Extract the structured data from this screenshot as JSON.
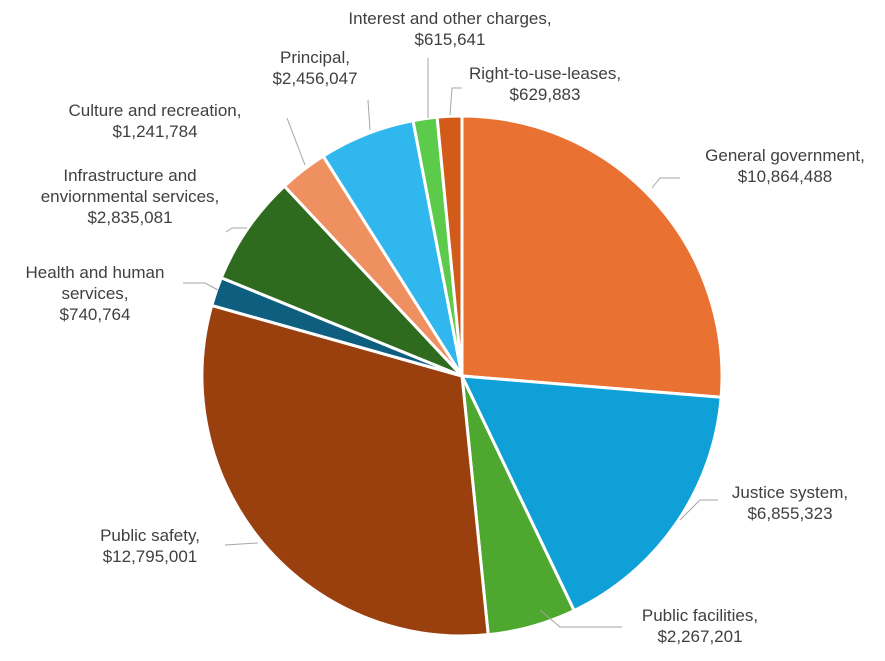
{
  "chart_data": {
    "type": "pie",
    "categories": [
      "General government,",
      "Justice system,",
      "Public facilities,",
      "Public safety,",
      "Health and human services,",
      "Infrastructure and enviornmental services,",
      "Culture and recreation,",
      "Principal,",
      "Interest and other charges,",
      "Right-to-use-leases,"
    ],
    "values": [
      10864488,
      6855323,
      2267201,
      12795001,
      740764,
      2835081,
      1241784,
      2456047,
      615641,
      629883
    ],
    "value_labels": [
      "$10,864,488",
      "$6,855,323",
      "$2,267,201",
      "$12,795,001",
      "$740,764",
      "$2,835,081",
      "$1,241,784",
      "$2,456,047",
      "$615,641",
      "$629,883"
    ],
    "colors": [
      "#E97132",
      "#10A0D8",
      "#4EA72E",
      "#9A3F0E",
      "#0E5F7F",
      "#2E6B1E",
      "#EE9060",
      "#30B8EE",
      "#5CCB4B",
      "#D35B1A"
    ]
  }
}
